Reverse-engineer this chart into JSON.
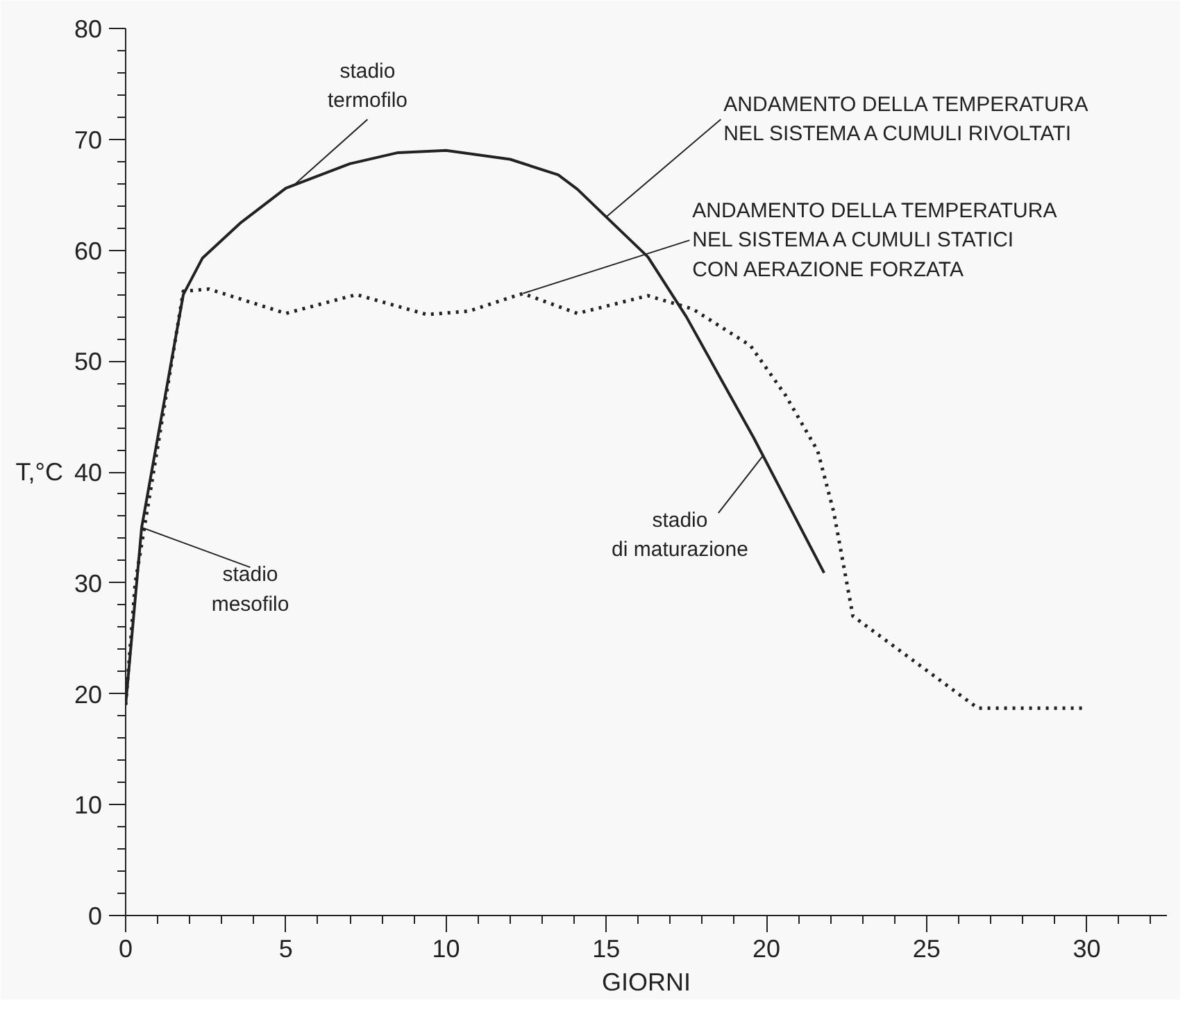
{
  "chart_data": {
    "type": "line",
    "xlabel": "GIORNI",
    "ylabel": "T,°C",
    "xlim": [
      0,
      32.5
    ],
    "ylim": [
      0,
      80
    ],
    "xticks": [
      0,
      5,
      10,
      15,
      20,
      25,
      30
    ],
    "yticks": [
      0,
      10,
      20,
      30,
      40,
      50,
      60,
      70,
      80
    ],
    "grid": false,
    "marker": "none",
    "series": [
      {
        "name": "ANDAMENTO DELLA TEMPERATURA\nNEL SISTEMA A CUMULI RIVOLTATI",
        "color": "#222222",
        "line_style": "solid",
        "x": [
          0,
          0.5,
          1.8,
          2.4,
          3.6,
          5.0,
          7.0,
          8.5,
          10.0,
          12.0,
          13.5,
          14.1,
          15.0,
          16.3,
          17.5,
          18.5,
          19.6,
          20.7,
          21.8
        ],
        "values": [
          19,
          35,
          56,
          59.3,
          62.5,
          65.6,
          67.8,
          68.8,
          69,
          68.2,
          66.8,
          65.5,
          63,
          59.4,
          54,
          48.8,
          43.1,
          37,
          30.9
        ]
      },
      {
        "name": "ANDAMENTO DELLA TEMPERATURA\nNEL SISTEMA A CUMULI STATICI\nCON AERAZIONE FORZATA",
        "color": "#222222",
        "line_style": "dotted",
        "x": [
          0,
          0.3,
          1.8,
          2.6,
          5.0,
          7.2,
          9.4,
          10.7,
          12.4,
          14.1,
          16.3,
          17.7,
          19.5,
          20.6,
          21.6,
          22.1,
          22.7,
          26.6,
          29.9
        ],
        "values": [
          19,
          30,
          56.3,
          56.5,
          54.3,
          56.0,
          54.2,
          54.5,
          56.1,
          54.3,
          55.9,
          54.7,
          51.4,
          46.9,
          41.9,
          36.4,
          27,
          18.7,
          18.7
        ]
      }
    ],
    "annotations": [
      {
        "text": "stadio\ntermofilo",
        "x": 5.3,
        "y": 66
      },
      {
        "text": "stadio\nmesofilo",
        "x": 0.5,
        "y": 35
      },
      {
        "text": "stadio\ndi maturazione",
        "x": 19.9,
        "y": 41.5
      }
    ]
  }
}
